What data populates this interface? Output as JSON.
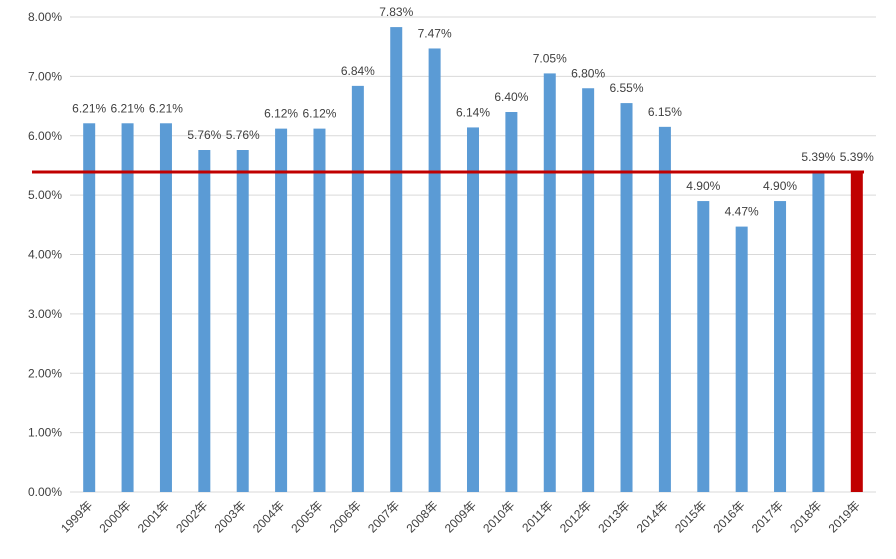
{
  "chart_data": {
    "type": "bar",
    "categories": [
      "1999年",
      "2000年",
      "2001年",
      "2002年",
      "2003年",
      "2004年",
      "2005年",
      "2006年",
      "2007年",
      "2008年",
      "2009年",
      "2010年",
      "2011年",
      "2012年",
      "2013年",
      "2014年",
      "2015年",
      "2016年",
      "2017年",
      "2018年",
      "2019年"
    ],
    "values": [
      6.21,
      6.21,
      6.21,
      5.76,
      5.76,
      6.12,
      6.12,
      6.84,
      7.83,
      7.47,
      6.14,
      6.4,
      7.05,
      6.8,
      6.55,
      6.15,
      4.9,
      4.47,
      4.9,
      5.39,
      5.39
    ],
    "data_labels": [
      "6.21%",
      "6.21%",
      "6.21%",
      "5.76%",
      "5.76%",
      "6.12%",
      "6.12%",
      "6.84%",
      "7.83%",
      "7.47%",
      "6.14%",
      "6.40%",
      "7.05%",
      "6.80%",
      "6.55%",
      "6.15%",
      "4.90%",
      "4.47%",
      "4.90%",
      "5.39%",
      "5.39%"
    ],
    "yticks": [
      0,
      1,
      2,
      3,
      4,
      5,
      6,
      7,
      8
    ],
    "ytick_labels": [
      "0.00%",
      "1.00%",
      "2.00%",
      "3.00%",
      "4.00%",
      "5.00%",
      "6.00%",
      "7.00%",
      "8.00%"
    ],
    "ylim": [
      0,
      8
    ],
    "reference_line": 5.39,
    "highlight_index": 20,
    "title": "",
    "xlabel": "",
    "ylabel": "",
    "grid": true,
    "colors": {
      "bar": "#5B9BD5",
      "highlight": "#C00000",
      "reference_line": "#C00000",
      "grid": "#D9D9D9",
      "text": "#404040"
    }
  }
}
